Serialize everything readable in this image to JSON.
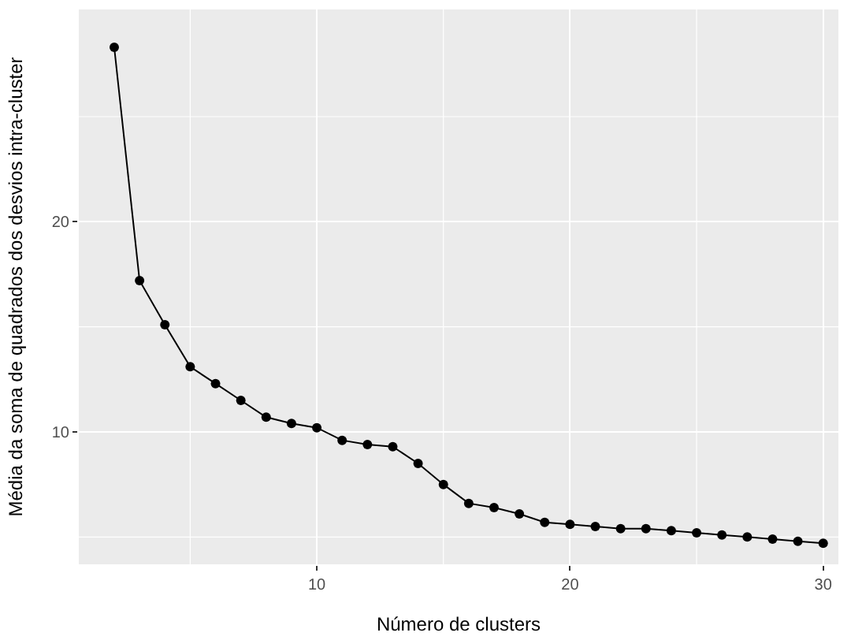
{
  "chart_data": {
    "type": "line",
    "xlabel": "Número de clusters",
    "ylabel": "Média da soma de quadrados dos desvios intra-cluster",
    "x": [
      2,
      3,
      4,
      5,
      6,
      7,
      8,
      9,
      10,
      11,
      12,
      13,
      14,
      15,
      16,
      17,
      18,
      19,
      20,
      21,
      22,
      23,
      24,
      25,
      26,
      27,
      28,
      29,
      30
    ],
    "series": [
      {
        "color": "#000000",
        "values": [
          28.3,
          17.2,
          15.1,
          13.1,
          12.3,
          11.5,
          10.7,
          10.4,
          10.2,
          9.6,
          9.4,
          9.3,
          8.5,
          7.5,
          6.6,
          6.4,
          6.1,
          5.7,
          5.6,
          5.5,
          5.4,
          5.4,
          5.3,
          5.2,
          5.1,
          5.0,
          4.9,
          4.8,
          4.7
        ]
      }
    ],
    "xlim": [
      0.6,
      30.6
    ],
    "ylim": [
      3.7,
      30.1
    ],
    "xticks": [
      10,
      20,
      30
    ],
    "yticks": [
      10,
      20
    ],
    "grid": true,
    "marker": "circle",
    "line_style": "solid",
    "legend": false
  }
}
